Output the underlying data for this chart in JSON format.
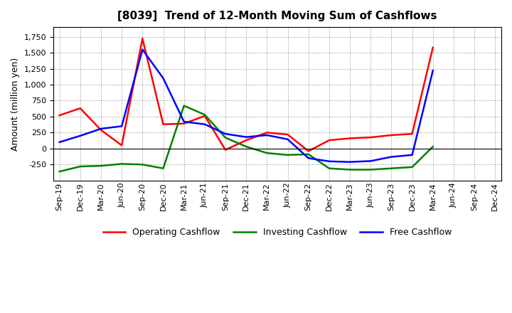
{
  "title": "[8039]  Trend of 12-Month Moving Sum of Cashflows",
  "ylabel": "Amount (million yen)",
  "x_labels": [
    "Sep-19",
    "Dec-19",
    "Mar-20",
    "Jun-20",
    "Sep-20",
    "Dec-20",
    "Mar-21",
    "Jun-21",
    "Sep-21",
    "Dec-21",
    "Mar-22",
    "Jun-22",
    "Sep-22",
    "Dec-22",
    "Mar-23",
    "Jun-23",
    "Sep-23",
    "Dec-23",
    "Mar-24",
    "Jun-24",
    "Sep-24",
    "Dec-24"
  ],
  "operating": [
    520,
    630,
    290,
    50,
    1720,
    380,
    390,
    510,
    -20,
    130,
    250,
    220,
    -40,
    130,
    160,
    175,
    210,
    230,
    1580,
    null,
    null,
    null
  ],
  "investing": [
    -360,
    -280,
    -270,
    -240,
    -250,
    -310,
    670,
    530,
    170,
    30,
    -70,
    -100,
    -90,
    -310,
    -330,
    -330,
    -310,
    -290,
    30,
    null,
    null,
    null
  ],
  "free": [
    100,
    200,
    310,
    350,
    1550,
    1100,
    420,
    380,
    230,
    180,
    210,
    145,
    -150,
    -200,
    -210,
    -195,
    -130,
    -100,
    1220,
    null,
    null,
    null
  ],
  "operating_color": "#ff0000",
  "investing_color": "#008000",
  "free_color": "#0000ff",
  "ylim": [
    -500,
    1900
  ],
  "yticks": [
    -250,
    0,
    250,
    500,
    750,
    1000,
    1250,
    1500,
    1750
  ],
  "background_color": "#ffffff",
  "grid_color": "#888888",
  "title_fontsize": 11,
  "label_fontsize": 9,
  "tick_fontsize": 8
}
